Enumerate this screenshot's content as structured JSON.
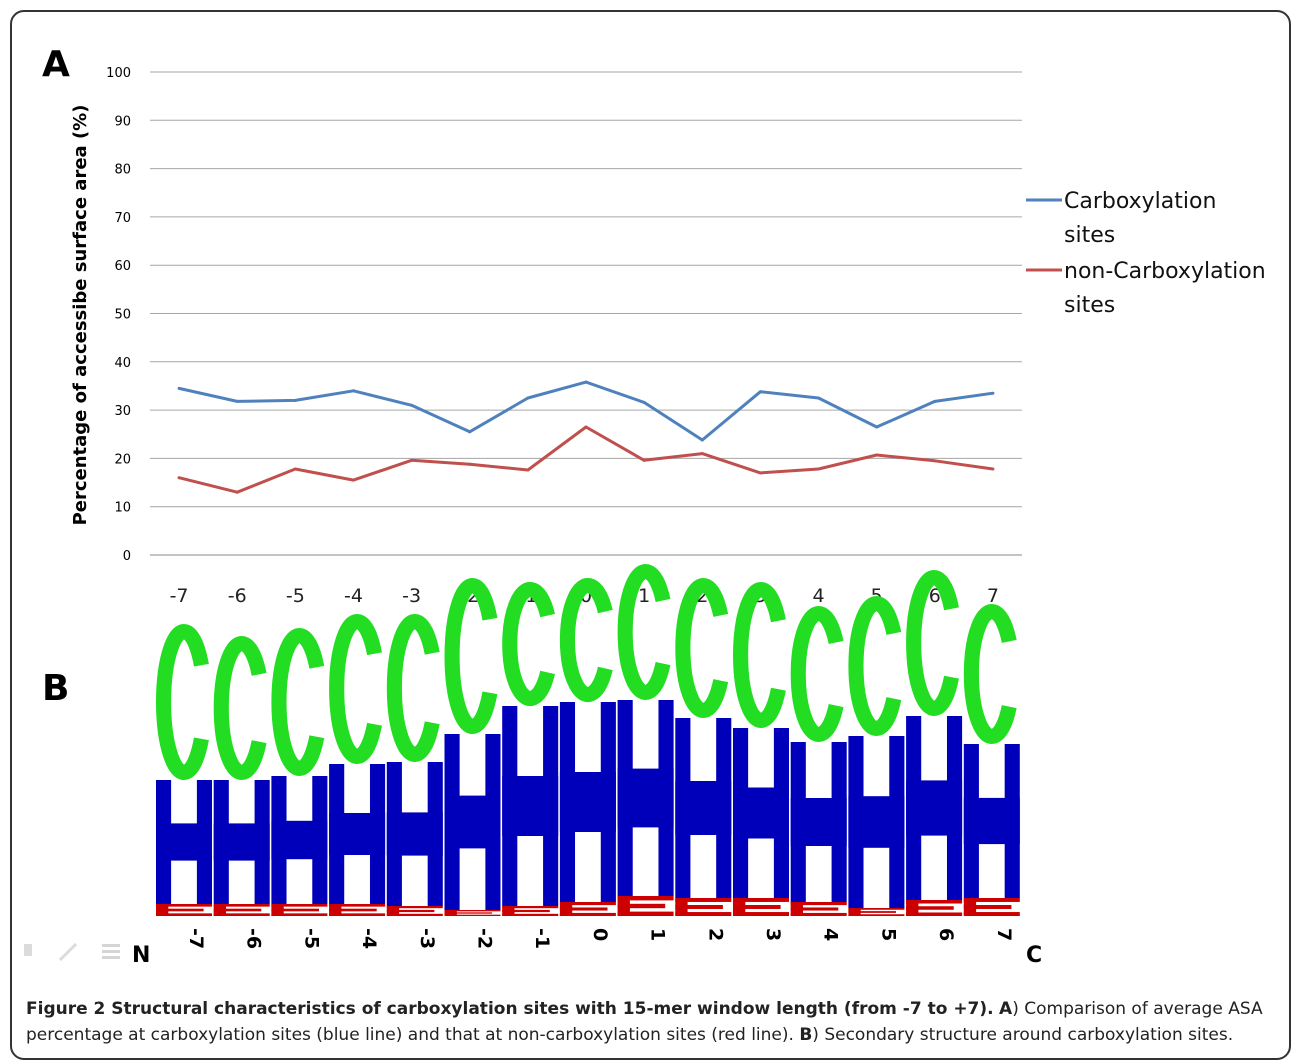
{
  "panel_a": {
    "letter": "A"
  },
  "panel_b": {
    "letter": "B",
    "n_terminal": "N",
    "c_terminal": "C"
  },
  "chart_data": [
    {
      "type": "line",
      "x": [
        "-7",
        "-6",
        "-5",
        "-4",
        "-3",
        "-2",
        "-1",
        "0",
        "1",
        "2",
        "3",
        "4",
        "5",
        "6",
        "7"
      ],
      "ylabel": "Percentage of accessibe surface area (%)",
      "xlabel": "",
      "ylim": [
        0,
        100
      ],
      "yticks": [
        0,
        10,
        20,
        30,
        40,
        50,
        60,
        70,
        80,
        90,
        100
      ],
      "grid": true,
      "legend_position": "right",
      "series": [
        {
          "name": "Carboxylation sites",
          "color": "#4F81BD",
          "values": [
            34.5,
            31.8,
            32.0,
            34.0,
            31.0,
            25.5,
            32.5,
            35.8,
            31.6,
            23.8,
            33.8,
            32.5,
            26.5,
            31.8,
            33.5
          ]
        },
        {
          "name": "non-Carboxylation sites",
          "color": "#C0504D",
          "values": [
            16.0,
            13.0,
            17.8,
            15.5,
            19.6,
            18.8,
            17.6,
            26.5,
            19.6,
            21.0,
            17.0,
            17.8,
            20.7,
            19.5,
            17.8
          ]
        }
      ]
    },
    {
      "type": "sequence-logo",
      "positions": [
        "-7",
        "-6",
        "-5",
        "-4",
        "-3",
        "-2",
        "-1",
        "0",
        "1",
        "2",
        "3",
        "4",
        "5",
        "6",
        "7"
      ],
      "letters": [
        {
          "letter": "C",
          "color": "#22DD22",
          "heights": [
            0.78,
            0.72,
            0.74,
            0.75,
            0.74,
            0.78,
            0.62,
            0.62,
            0.68,
            0.7,
            0.73,
            0.68,
            0.7,
            0.73,
            0.7
          ]
        },
        {
          "letter": "H",
          "color": "#0000BB",
          "heights": [
            0.62,
            0.62,
            0.64,
            0.7,
            0.72,
            0.88,
            1.0,
            1.0,
            0.98,
            0.9,
            0.85,
            0.8,
            0.86,
            0.92,
            0.77
          ]
        },
        {
          "letter": "E",
          "color": "#CC0000",
          "heights": [
            0.06,
            0.06,
            0.06,
            0.06,
            0.05,
            0.03,
            0.05,
            0.07,
            0.1,
            0.09,
            0.09,
            0.07,
            0.04,
            0.08,
            0.09
          ]
        }
      ]
    }
  ],
  "caption": {
    "bold": "Figure 2 Structural characteristics of carboxylation sites with 15-mer window length (from -7 to +7).",
    "a_label": "A",
    "a_text": ") Comparison of average ASA percentage at carboxylation sites (blue line) and that at non-carboxylation sites (red line).",
    "b_label": "B",
    "b_text": ") Secondary structure around carboxylation sites."
  }
}
